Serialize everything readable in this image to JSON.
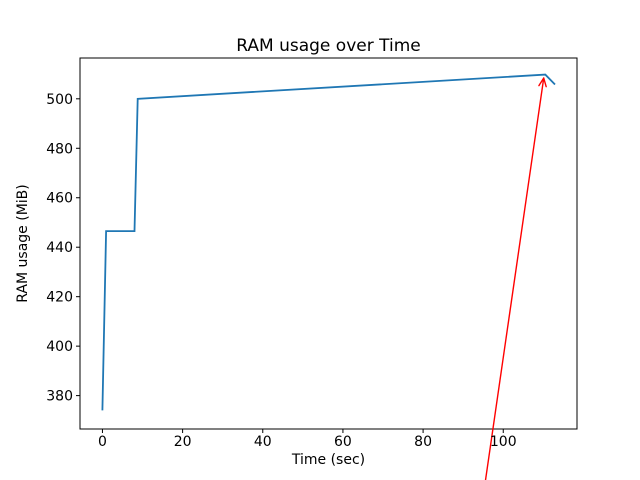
{
  "figure": {
    "background": "#ffffff",
    "spine_color": "#000000",
    "text_color": "#000000"
  },
  "chart_data": {
    "type": "line",
    "title": "RAM usage over Time",
    "xlabel": "Time (sec)",
    "ylabel": "RAM usage (MiB)",
    "grid": false,
    "legend": null,
    "xlim": [
      -5.6,
      118.4
    ],
    "ylim": [
      366.5,
      516.5
    ],
    "xticks": [
      0,
      20,
      40,
      60,
      80,
      100
    ],
    "yticks": [
      380,
      400,
      420,
      440,
      460,
      480,
      500
    ],
    "series": [
      {
        "name": "RAM usage",
        "color": "#1f77b4",
        "line_width": 1.8,
        "points": [
          [
            0,
            374
          ],
          [
            0.9,
            446.5
          ],
          [
            8,
            446.5
          ],
          [
            8.8,
            500
          ],
          [
            110.5,
            509.8
          ],
          [
            112.9,
            505.8
          ]
        ]
      }
    ],
    "annotation": {
      "type": "arrow",
      "color": "#ff0000",
      "line_width": 1.4,
      "tip": [
        110.1,
        508.4
      ],
      "tail": [
        95.5,
        345.0
      ]
    }
  }
}
